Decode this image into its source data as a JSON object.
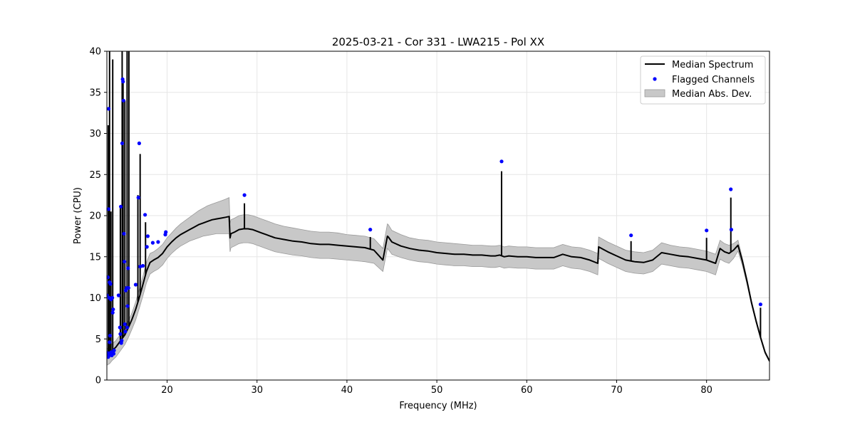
{
  "chart_data": {
    "type": "line",
    "title": "2025-03-21 - Cor 331 - LWA215 - Pol XX",
    "xlabel": "Frequency (MHz)",
    "ylabel": "Power (CPU)",
    "xlim": [
      13.3,
      87.0
    ],
    "ylim": [
      0,
      40
    ],
    "xticks": [
      20,
      30,
      40,
      50,
      60,
      70,
      80
    ],
    "yticks": [
      0,
      5,
      10,
      15,
      20,
      25,
      30,
      35,
      40
    ],
    "grid": true,
    "legend_position": "top-right",
    "legend": {
      "median": "Median Spectrum",
      "flagged": "Flagged Channels",
      "mad": "Median Abs. Dev."
    },
    "colors": {
      "median": "#000000",
      "flagged": "#0000ff",
      "mad_fill": "#c8c8c8",
      "mad_edge": "#9a9a9a",
      "grid": "#e6e6e6"
    },
    "series": [
      {
        "name": "Median Spectrum",
        "x": [
          13.3,
          13.6,
          13.9,
          14.3,
          14.7,
          15.3,
          15.7,
          16.1,
          16.5,
          16.9,
          17.3,
          17.7,
          18.1,
          18.5,
          19.0,
          19.5,
          20.0,
          20.5,
          21.0,
          21.5,
          22.0,
          22.5,
          23.0,
          23.5,
          24.0,
          24.5,
          25.0,
          25.5,
          26.0,
          26.5,
          26.9,
          27.0,
          27.1,
          27.5,
          28.0,
          28.5,
          29.0,
          29.5,
          30.0,
          30.5,
          31.0,
          31.5,
          32.0,
          33.0,
          34.0,
          35.0,
          36.0,
          37.0,
          38.0,
          39.0,
          40.0,
          41.0,
          42.0,
          43.0,
          44.0,
          44.5,
          44.6,
          45.0,
          46.0,
          47.0,
          48.0,
          49.0,
          50.0,
          51.0,
          52.0,
          53.0,
          54.0,
          55.0,
          56.0,
          56.5,
          57.0,
          57.5,
          58.0,
          59.0,
          60.0,
          61.0,
          62.0,
          63.0,
          64.0,
          65.0,
          66.0,
          67.0,
          67.9,
          68.0,
          68.5,
          69.0,
          70.0,
          71.0,
          72.0,
          73.0,
          74.0,
          75.0,
          76.0,
          77.0,
          78.0,
          79.0,
          80.0,
          81.0,
          81.5,
          82.0,
          82.5,
          83.0,
          83.5,
          84.0,
          84.5,
          85.0,
          85.5,
          86.0,
          86.5,
          87.0
        ],
        "values": [
          3.0,
          3.2,
          3.6,
          4.0,
          4.6,
          5.5,
          6.4,
          7.4,
          8.6,
          10.0,
          11.6,
          13.2,
          14.3,
          14.6,
          14.9,
          15.4,
          16.2,
          16.8,
          17.3,
          17.7,
          18.0,
          18.3,
          18.6,
          18.9,
          19.1,
          19.3,
          19.5,
          19.6,
          19.7,
          19.8,
          19.9,
          17.3,
          17.8,
          18.0,
          18.3,
          18.4,
          18.4,
          18.3,
          18.1,
          17.9,
          17.7,
          17.5,
          17.3,
          17.1,
          16.9,
          16.8,
          16.6,
          16.5,
          16.5,
          16.4,
          16.3,
          16.2,
          16.1,
          15.8,
          14.6,
          17.5,
          17.4,
          16.8,
          16.3,
          16.0,
          15.8,
          15.7,
          15.5,
          15.4,
          15.3,
          15.3,
          15.2,
          15.2,
          15.1,
          15.1,
          15.2,
          15.0,
          15.1,
          15.0,
          15.0,
          14.9,
          14.9,
          14.9,
          15.3,
          15.0,
          14.9,
          14.6,
          14.2,
          16.2,
          15.9,
          15.6,
          15.1,
          14.6,
          14.4,
          14.3,
          14.6,
          15.5,
          15.3,
          15.1,
          15.0,
          14.8,
          14.6,
          14.2,
          16.0,
          15.6,
          15.4,
          15.8,
          16.4,
          14.4,
          12.0,
          9.4,
          7.2,
          5.2,
          3.4,
          2.3
        ]
      },
      {
        "name": "Median Abs. Dev.",
        "x": [
          13.3,
          13.6,
          13.9,
          14.3,
          14.7,
          15.3,
          15.7,
          16.1,
          16.5,
          16.9,
          17.3,
          17.7,
          18.1,
          18.5,
          19.0,
          19.5,
          20.0,
          20.5,
          21.0,
          21.5,
          22.0,
          22.5,
          23.0,
          23.5,
          24.0,
          24.5,
          25.0,
          25.5,
          26.0,
          26.5,
          26.9,
          27.0,
          27.1,
          27.5,
          28.0,
          28.5,
          29.0,
          29.5,
          30.0,
          30.5,
          31.0,
          31.5,
          32.0,
          33.0,
          34.0,
          35.0,
          36.0,
          37.0,
          38.0,
          39.0,
          40.0,
          41.0,
          42.0,
          43.0,
          44.0,
          44.5,
          44.6,
          45.0,
          46.0,
          47.0,
          48.0,
          49.0,
          50.0,
          51.0,
          52.0,
          53.0,
          54.0,
          55.0,
          56.0,
          56.5,
          57.0,
          57.5,
          58.0,
          59.0,
          60.0,
          61.0,
          62.0,
          63.0,
          64.0,
          65.0,
          66.0,
          67.0,
          67.9,
          68.0,
          68.5,
          69.0,
          70.0,
          71.0,
          72.0,
          73.0,
          74.0,
          75.0,
          76.0,
          77.0,
          78.0,
          79.0,
          80.0,
          81.0,
          81.5,
          82.0,
          82.5,
          83.0,
          83.5,
          84.0,
          84.5,
          85.0,
          85.5,
          86.0,
          86.5,
          87.0
        ],
        "upper": [
          3.8,
          4.0,
          4.4,
          4.8,
          5.4,
          6.3,
          7.2,
          8.2,
          9.5,
          11.0,
          12.6,
          14.3,
          15.4,
          15.6,
          16.0,
          16.5,
          17.3,
          17.9,
          18.5,
          19.0,
          19.4,
          19.8,
          20.2,
          20.6,
          20.9,
          21.2,
          21.4,
          21.6,
          21.8,
          22.0,
          22.2,
          19.0,
          19.5,
          19.7,
          20.0,
          20.1,
          20.1,
          20.0,
          19.8,
          19.6,
          19.4,
          19.2,
          19.0,
          18.7,
          18.5,
          18.3,
          18.1,
          18.0,
          18.0,
          17.9,
          17.7,
          17.6,
          17.5,
          17.2,
          16.0,
          19.0,
          18.9,
          18.2,
          17.7,
          17.3,
          17.1,
          17.0,
          16.8,
          16.7,
          16.6,
          16.5,
          16.4,
          16.4,
          16.3,
          16.3,
          16.4,
          16.2,
          16.3,
          16.2,
          16.2,
          16.1,
          16.1,
          16.1,
          16.5,
          16.2,
          16.1,
          15.8,
          15.4,
          17.4,
          17.1,
          16.8,
          16.3,
          15.8,
          15.6,
          15.5,
          15.8,
          16.7,
          16.4,
          16.2,
          16.1,
          15.9,
          15.7,
          15.3,
          17.0,
          16.6,
          16.4,
          16.6,
          17.0,
          14.8,
          12.3,
          9.6,
          7.4,
          5.3,
          3.5,
          2.4
        ],
        "lower": [
          1.8,
          2.0,
          2.4,
          2.8,
          3.4,
          4.3,
          5.2,
          6.2,
          7.3,
          8.7,
          10.2,
          11.8,
          12.9,
          13.2,
          13.5,
          14.0,
          14.8,
          15.4,
          15.9,
          16.3,
          16.6,
          16.9,
          17.1,
          17.3,
          17.5,
          17.6,
          17.7,
          17.8,
          17.8,
          17.8,
          17.8,
          15.6,
          16.1,
          16.3,
          16.6,
          16.7,
          16.7,
          16.6,
          16.4,
          16.2,
          16.0,
          15.8,
          15.6,
          15.4,
          15.2,
          15.1,
          14.9,
          14.8,
          14.8,
          14.7,
          14.6,
          14.5,
          14.4,
          14.2,
          13.2,
          16.0,
          15.9,
          15.3,
          14.9,
          14.6,
          14.4,
          14.3,
          14.1,
          14.0,
          13.9,
          13.9,
          13.8,
          13.8,
          13.7,
          13.7,
          13.8,
          13.6,
          13.7,
          13.6,
          13.6,
          13.5,
          13.5,
          13.5,
          13.9,
          13.6,
          13.5,
          13.2,
          12.8,
          14.8,
          14.5,
          14.2,
          13.7,
          13.2,
          13.0,
          12.9,
          13.2,
          14.1,
          13.9,
          13.7,
          13.6,
          13.4,
          13.2,
          12.8,
          14.7,
          14.4,
          14.2,
          14.8,
          15.7,
          13.9,
          11.6,
          9.1,
          7.0,
          5.0,
          3.2,
          2.2
        ]
      }
    ],
    "spikes": {
      "x": [
        13.45,
        13.6,
        13.75,
        13.95,
        14.8,
        15.0,
        15.1,
        15.3,
        15.55,
        15.75,
        16.75,
        17.0,
        17.6,
        28.6,
        42.6,
        57.2,
        71.6,
        80.0,
        82.7,
        86.0
      ],
      "values": [
        31.0,
        40.0,
        20.5,
        39.0,
        21.0,
        40.0,
        36.5,
        34.0,
        40.0,
        40.0,
        22.5,
        27.5,
        19.2,
        21.5,
        17.4,
        25.4,
        16.9,
        17.3,
        22.2,
        8.8
      ]
    },
    "flagged": {
      "x": [
        13.3,
        13.35,
        13.4,
        13.45,
        13.5,
        13.5,
        13.55,
        13.55,
        13.6,
        13.6,
        13.65,
        13.7,
        13.7,
        13.75,
        13.8,
        13.85,
        13.9,
        13.95,
        14.0,
        14.05,
        14.1,
        14.6,
        14.75,
        14.8,
        14.85,
        14.9,
        14.95,
        15.0,
        15.05,
        15.1,
        15.15,
        15.2,
        15.25,
        15.3,
        15.35,
        15.4,
        15.5,
        15.55,
        15.6,
        15.65,
        15.7,
        16.5,
        16.8,
        16.9,
        17.0,
        17.3,
        17.55,
        17.75,
        17.85,
        18.4,
        19.0,
        19.8,
        19.85,
        28.6,
        42.6,
        57.2,
        71.6,
        80.0,
        82.7,
        82.75,
        86.0
      ],
      "values": [
        10.3,
        3.3,
        12.5,
        2.8,
        33.0,
        20.8,
        10.0,
        3.0,
        4.6,
        11.9,
        5.4,
        11.7,
        3.3,
        9.8,
        3.4,
        3.0,
        10.0,
        8.2,
        8.6,
        3.2,
        3.6,
        10.3,
        6.4,
        5.6,
        21.1,
        4.5,
        4.8,
        28.8,
        36.6,
        36.3,
        34.0,
        17.8,
        14.4,
        6.8,
        5.9,
        10.9,
        11.2,
        6.4,
        9.0,
        13.6,
        11.2,
        11.6,
        22.2,
        28.8,
        13.8,
        13.9,
        20.1,
        16.2,
        17.5,
        16.7,
        16.8,
        17.7,
        18.0,
        22.5,
        18.3,
        26.6,
        17.6,
        18.2,
        23.2,
        18.3,
        9.2
      ]
    }
  }
}
